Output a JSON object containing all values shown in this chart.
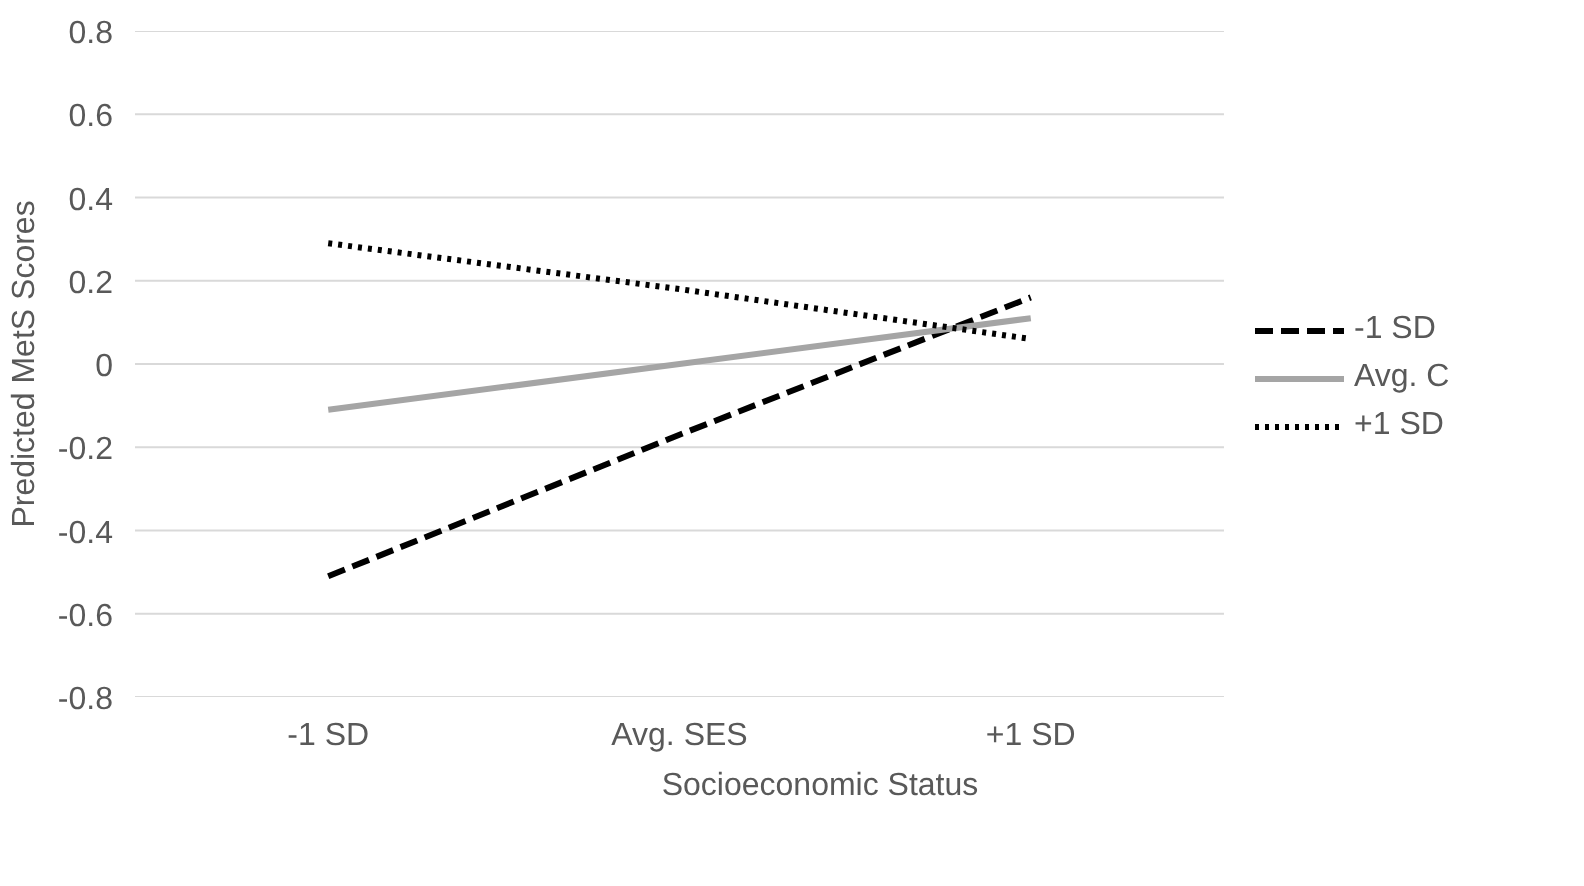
{
  "chart_data": {
    "type": "line",
    "xlabel": "Socioeconomic Status",
    "ylabel": "Predicted MetS Scores",
    "categories": [
      "-1 SD",
      "Avg. SES",
      "+1 SD"
    ],
    "series": [
      {
        "name": "-1 SD",
        "color": "#000000",
        "line_style": "dashed",
        "values": [
          -0.51,
          -0.17,
          0.16
        ]
      },
      {
        "name": "Avg. C",
        "color": "#a5a5a5",
        "line_style": "solid",
        "values": [
          -0.11,
          0.0,
          0.11
        ]
      },
      {
        "name": "+1 SD",
        "color": "#000000",
        "line_style": "dotted",
        "values": [
          0.29,
          0.18,
          0.06
        ]
      }
    ],
    "ylim": [
      -0.8,
      0.8
    ],
    "yticks": [
      {
        "value": -0.8,
        "label": "-0.8"
      },
      {
        "value": -0.6,
        "label": "-0.6"
      },
      {
        "value": -0.4,
        "label": "-0.4"
      },
      {
        "value": -0.2,
        "label": "-0.2"
      },
      0,
      {
        "value": 0.2,
        "label": "0.2"
      },
      {
        "value": 0.4,
        "label": "0.4"
      },
      {
        "value": 0.6,
        "label": "0.6"
      },
      {
        "value": 0.8,
        "label": "0.8"
      }
    ],
    "grid": "y",
    "legend": "right",
    "marker": "none"
  }
}
